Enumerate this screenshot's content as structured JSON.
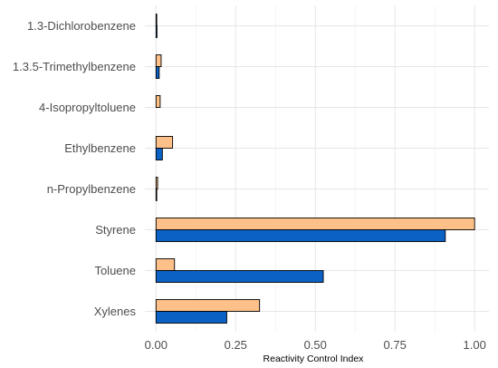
{
  "chart_data": {
    "type": "bar",
    "orientation": "horizontal",
    "categories": [
      "1.3-Dichlorobenzene",
      "1.3.5-Trimethylbenzene",
      "4-Isopropyltoluene",
      "Ethylbenzene",
      "n-Propylbenzene",
      "Styrene",
      "Toluene",
      "Xylenes"
    ],
    "series": [
      {
        "color": "#FDC088",
        "values": [
          0.0,
          0.016,
          0.013,
          0.052,
          0.005,
          1.0,
          0.058,
          0.325
        ]
      },
      {
        "color": "#0B61C4",
        "values": [
          0.003,
          0.01,
          null,
          0.02,
          0.001,
          0.908,
          0.525,
          0.222
        ]
      }
    ],
    "xlabel": "Reactivity Control Index",
    "ylabel": "",
    "xlim": [
      -0.035,
      1.045
    ],
    "x_ticks": [
      "0.00",
      "0.25",
      "0.50",
      "0.75",
      "1.00"
    ],
    "x_tick_values": [
      0,
      0.25,
      0.5,
      0.75,
      1.0
    ],
    "grid": true,
    "legend": "none"
  }
}
